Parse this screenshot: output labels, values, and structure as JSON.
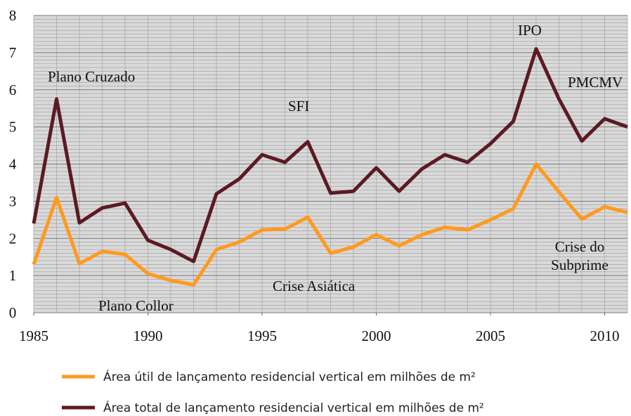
{
  "chart_data": {
    "type": "line",
    "x": [
      1985,
      1986,
      1987,
      1988,
      1989,
      1990,
      1991,
      1992,
      1993,
      1994,
      1995,
      1996,
      1997,
      1998,
      1999,
      2000,
      2001,
      2002,
      2003,
      2004,
      2005,
      2006,
      2007,
      2008,
      2009,
      2010,
      2011
    ],
    "series": [
      {
        "name": "Área útil de lançamento residencial vertical em milhões de m²",
        "color": "#ff9a1f",
        "values": [
          1.3,
          3.1,
          1.32,
          1.65,
          1.57,
          1.05,
          0.87,
          0.75,
          1.7,
          1.9,
          2.23,
          2.25,
          2.57,
          1.6,
          1.77,
          2.1,
          1.8,
          2.1,
          2.3,
          2.23,
          2.5,
          2.8,
          4.0,
          3.25,
          2.52,
          2.85,
          2.7
        ]
      },
      {
        "name": "Área total de lançamento residencial vertical em milhões de m²",
        "color": "#5c1a22",
        "values": [
          2.4,
          5.75,
          2.42,
          2.82,
          2.95,
          1.95,
          1.7,
          1.38,
          3.2,
          3.6,
          4.25,
          4.05,
          4.6,
          3.22,
          3.27,
          3.9,
          3.27,
          3.87,
          4.25,
          4.05,
          4.55,
          5.15,
          7.1,
          5.75,
          4.62,
          5.22,
          5.0
        ]
      }
    ],
    "annotations": [
      "Plano Cruzado",
      "Plano Collor",
      "SFI",
      "Crise Asiática",
      "IPO",
      "PMCMV",
      "Crise do Subprime"
    ],
    "xlim": [
      1985,
      2011
    ],
    "xticks": [
      1985,
      1990,
      1995,
      2000,
      2005,
      2010
    ],
    "ylim": [
      0,
      8
    ],
    "yticks": [
      0,
      1,
      2,
      3,
      4,
      5,
      6,
      7,
      8
    ],
    "grid": true
  }
}
